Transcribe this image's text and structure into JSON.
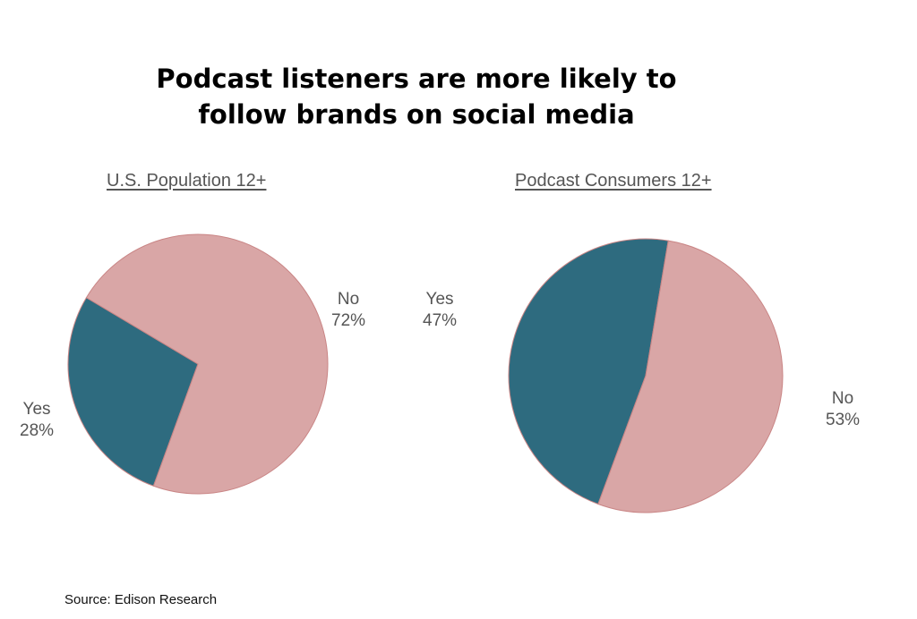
{
  "title_line1": "Podcast listeners are more likely to",
  "title_line2": "follow brands on social media",
  "source": "Source: Edison Research",
  "colors": {
    "yes": "#2e6b7f",
    "no": "#d9a6a6",
    "no_edge": "#c98585"
  },
  "chart_data": [
    {
      "type": "pie",
      "title": "U.S. Population 12+",
      "slices": [
        {
          "label": "Yes",
          "value": 28,
          "text": "28%"
        },
        {
          "label": "No",
          "value": 72,
          "text": "72%"
        }
      ]
    },
    {
      "type": "pie",
      "title": "Podcast Consumers 12+",
      "slices": [
        {
          "label": "Yes",
          "value": 47,
          "text": "47%"
        },
        {
          "label": "No",
          "value": 53,
          "text": "53%"
        }
      ]
    }
  ]
}
